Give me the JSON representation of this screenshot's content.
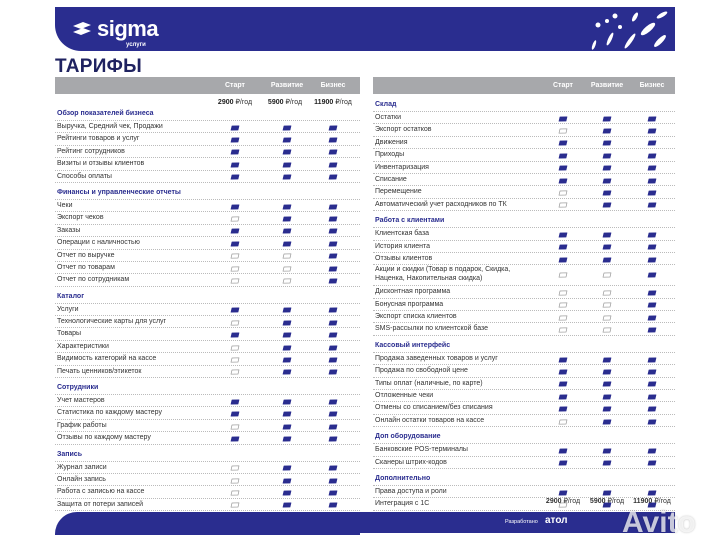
{
  "brand": {
    "name": "sigma",
    "sub": "услуги"
  },
  "title": "ТАРИФЫ",
  "plans": [
    "Старт",
    "Развитие",
    "Бизнес"
  ],
  "prices": [
    {
      "amount": "2900",
      "unit": "₽/год"
    },
    {
      "amount": "5900",
      "unit": "₽/год"
    },
    {
      "amount": "11900",
      "unit": "₽/год"
    }
  ],
  "colors": {
    "brand": "#2a2d8f",
    "header_bar": "#a7a8ab"
  },
  "legend": {
    "f": "included (filled icon)",
    "e": "not included (outline icon)"
  },
  "left": [
    {
      "title": "Обзор показателей бизнеса",
      "rows": [
        {
          "label": "Выручка, Средний чек, Продажи",
          "marks": [
            "f",
            "f",
            "f"
          ]
        },
        {
          "label": "Рейтинги товаров и услуг",
          "marks": [
            "f",
            "f",
            "f"
          ]
        },
        {
          "label": "Рейтинг сотрудников",
          "marks": [
            "f",
            "f",
            "f"
          ]
        },
        {
          "label": "Визиты и отзывы клиентов",
          "marks": [
            "f",
            "f",
            "f"
          ]
        },
        {
          "label": "Способы оплаты",
          "marks": [
            "f",
            "f",
            "f"
          ]
        }
      ]
    },
    {
      "title": "Финансы и управленческие отчеты",
      "rows": [
        {
          "label": "Чеки",
          "marks": [
            "f",
            "f",
            "f"
          ]
        },
        {
          "label": "Экспорт чеков",
          "marks": [
            "e",
            "f",
            "f"
          ]
        },
        {
          "label": "Заказы",
          "marks": [
            "f",
            "f",
            "f"
          ]
        },
        {
          "label": "Операции с наличностью",
          "marks": [
            "f",
            "f",
            "f"
          ]
        },
        {
          "label": "Отчет по выручке",
          "marks": [
            "e",
            "e",
            "f"
          ]
        },
        {
          "label": "Отчет по товарам",
          "marks": [
            "e",
            "e",
            "f"
          ]
        },
        {
          "label": "Отчет по сотрудникам",
          "marks": [
            "e",
            "e",
            "f"
          ]
        }
      ]
    },
    {
      "title": "Каталог",
      "rows": [
        {
          "label": "Услуги",
          "marks": [
            "f",
            "f",
            "f"
          ]
        },
        {
          "label": "Технологические карты для услуг",
          "marks": [
            "e",
            "f",
            "f"
          ]
        },
        {
          "label": "Товары",
          "marks": [
            "f",
            "f",
            "f"
          ]
        },
        {
          "label": "Характеристики",
          "marks": [
            "e",
            "f",
            "f"
          ]
        },
        {
          "label": "Видимость категорий на кассе",
          "marks": [
            "e",
            "f",
            "f"
          ]
        },
        {
          "label": "Печать ценников/этикеток",
          "marks": [
            "e",
            "f",
            "f"
          ]
        }
      ]
    },
    {
      "title": "Сотрудники",
      "rows": [
        {
          "label": "Учет мастеров",
          "marks": [
            "f",
            "f",
            "f"
          ]
        },
        {
          "label": "Статистика по каждому мастеру",
          "marks": [
            "f",
            "f",
            "f"
          ]
        },
        {
          "label": "График работы",
          "marks": [
            "e",
            "f",
            "f"
          ]
        },
        {
          "label": "Отзывы по каждому мастеру",
          "marks": [
            "f",
            "f",
            "f"
          ]
        }
      ]
    },
    {
      "title": "Запись",
      "rows": [
        {
          "label": "Журнал записи",
          "marks": [
            "e",
            "f",
            "f"
          ]
        },
        {
          "label": "Онлайн запись",
          "marks": [
            "e",
            "f",
            "f"
          ]
        },
        {
          "label": "Работа с записью на кассе",
          "marks": [
            "e",
            "f",
            "f"
          ]
        },
        {
          "label": "Защита от потери записей",
          "marks": [
            "e",
            "f",
            "f"
          ]
        }
      ]
    }
  ],
  "right": [
    {
      "title": "Склад",
      "rows": [
        {
          "label": "Остатки",
          "marks": [
            "f",
            "f",
            "f"
          ]
        },
        {
          "label": "Экспорт остатков",
          "marks": [
            "e",
            "f",
            "f"
          ]
        },
        {
          "label": "Движения",
          "marks": [
            "f",
            "f",
            "f"
          ]
        },
        {
          "label": "Приходы",
          "marks": [
            "f",
            "f",
            "f"
          ]
        },
        {
          "label": "Инвентаризация",
          "marks": [
            "f",
            "f",
            "f"
          ]
        },
        {
          "label": "Списание",
          "marks": [
            "f",
            "f",
            "f"
          ]
        },
        {
          "label": "Перемещение",
          "marks": [
            "e",
            "f",
            "f"
          ]
        },
        {
          "label": "Автоматический учет расходников по ТК",
          "marks": [
            "e",
            "f",
            "f"
          ]
        }
      ]
    },
    {
      "title": "Работа с клиентами",
      "rows": [
        {
          "label": "Клиентская база",
          "marks": [
            "f",
            "f",
            "f"
          ]
        },
        {
          "label": "История клиента",
          "marks": [
            "f",
            "f",
            "f"
          ]
        },
        {
          "label": "Отзывы клиентов",
          "marks": [
            "f",
            "f",
            "f"
          ]
        },
        {
          "label": "Акции и скидки (Товар в подарок, Скидка, Наценка, Накопительная скидка)",
          "marks": [
            "e",
            "e",
            "f"
          ]
        },
        {
          "label": "Дисконтная программа",
          "marks": [
            "e",
            "e",
            "f"
          ]
        },
        {
          "label": "Бонусная программа",
          "marks": [
            "e",
            "e",
            "f"
          ]
        },
        {
          "label": "Экспорт списка клиентов",
          "marks": [
            "e",
            "e",
            "f"
          ]
        },
        {
          "label": "SMS-рассылки по клиентской базе",
          "marks": [
            "e",
            "e",
            "f"
          ]
        }
      ]
    },
    {
      "title": "Кассовый интерфейс",
      "rows": [
        {
          "label": "Продажа заведенных товаров и услуг",
          "marks": [
            "f",
            "f",
            "f"
          ]
        },
        {
          "label": "Продажа по свободной цене",
          "marks": [
            "f",
            "f",
            "f"
          ]
        },
        {
          "label": "Типы оплат (наличные, по карте)",
          "marks": [
            "f",
            "f",
            "f"
          ]
        },
        {
          "label": "Отложенные чеки",
          "marks": [
            "f",
            "f",
            "f"
          ]
        },
        {
          "label": "Отмены со списанием/без списания",
          "marks": [
            "f",
            "f",
            "f"
          ]
        },
        {
          "label": "Онлайн остатки товаров на кассе",
          "marks": [
            "e",
            "f",
            "f"
          ]
        }
      ]
    },
    {
      "title": "Доп оборудование",
      "rows": [
        {
          "label": "Банковские POS-терминалы",
          "marks": [
            "f",
            "f",
            "f"
          ]
        },
        {
          "label": "Сканеры штрих-кодов",
          "marks": [
            "f",
            "f",
            "f"
          ]
        }
      ]
    },
    {
      "title": "Дополнительно",
      "rows": [
        {
          "label": "Права доступа и роли",
          "marks": [
            "f",
            "f",
            "f"
          ]
        },
        {
          "label": "Интеграция с 1С",
          "marks": [
            "e",
            "f",
            "f"
          ]
        }
      ]
    }
  ],
  "footer": {
    "developed": "Разработано",
    "partner": "атол",
    "watermark": "Avito"
  }
}
